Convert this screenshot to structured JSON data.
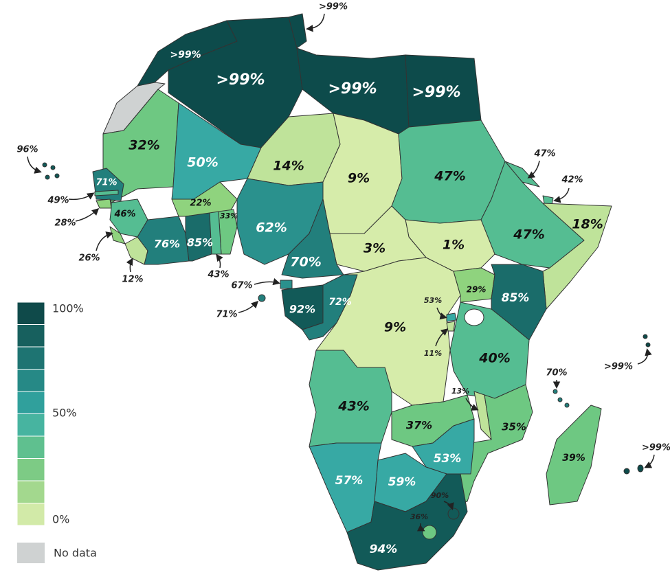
{
  "map": {
    "regions": [
      {
        "label": ">99%",
        "color": "#0d4b4b"
      },
      {
        "label": ">99%",
        "color": "#0d4b4b"
      },
      {
        "label": ">99%",
        "color": "#0d4b4b"
      },
      {
        "label": ">99%",
        "color": "#0d4b4b"
      },
      {
        "label": ">99%",
        "color": "#0d4b4b"
      },
      {
        "label": "32%",
        "color": "#6ec882"
      },
      {
        "label": "50%",
        "color": "#37a9a4"
      },
      {
        "label": "14%",
        "color": "#bfe39a"
      },
      {
        "label": "9%",
        "color": "#d6ecaa"
      },
      {
        "label": "47%",
        "color": "#55bd92"
      },
      {
        "label": "47%",
        "color": "#55bd92"
      },
      {
        "label": "42%",
        "color": "#55bd92"
      },
      {
        "label": "47%",
        "color": "#55bd92"
      },
      {
        "label": "18%",
        "color": "#bfe39a"
      },
      {
        "label": "1%",
        "color": "#d6ecaa"
      },
      {
        "label": "3%",
        "color": "#d6ecaa"
      },
      {
        "label": "62%",
        "color": "#2a918d"
      },
      {
        "label": "70%",
        "color": "#227f7c"
      },
      {
        "label": "71%",
        "color": "#227f7c"
      },
      {
        "label": "49%",
        "color": "#55bd92"
      },
      {
        "label": "28%",
        "color": "#8fd37e"
      },
      {
        "label": "46%",
        "color": "#55bd92"
      },
      {
        "label": "26%",
        "color": "#8fd37e"
      },
      {
        "label": "12%",
        "color": "#bfe39a"
      },
      {
        "label": "76%",
        "color": "#227f7c"
      },
      {
        "label": "22%",
        "color": "#8fd37e"
      },
      {
        "label": "85%",
        "color": "#1a6c6a"
      },
      {
        "label": "33%",
        "color": "#6ec882"
      },
      {
        "label": "43%",
        "color": "#55bd92"
      },
      {
        "label": "67%",
        "color": "#2a918d"
      },
      {
        "label": "71%",
        "color": "#227f7c"
      },
      {
        "label": "92%",
        "color": "#125a58"
      },
      {
        "label": "72%",
        "color": "#227f7c"
      },
      {
        "label": "9%",
        "color": "#d6ecaa"
      },
      {
        "label": "29%",
        "color": "#8fd37e"
      },
      {
        "label": "85%",
        "color": "#1a6c6a"
      },
      {
        "label": "53%",
        "color": "#37a9a4"
      },
      {
        "label": "11%",
        "color": "#bfe39a"
      },
      {
        "label": "40%",
        "color": "#55bd92"
      },
      {
        "label": "43%",
        "color": "#55bd92"
      },
      {
        "label": "37%",
        "color": "#6ec882"
      },
      {
        "label": "13%",
        "color": "#bfe39a"
      },
      {
        "label": "35%",
        "color": "#6ec882"
      },
      {
        "label": "53%",
        "color": "#37a9a4"
      },
      {
        "label": "57%",
        "color": "#37a9a4"
      },
      {
        "label": "59%",
        "color": "#37a9a4"
      },
      {
        "label": "94%",
        "color": "#125a58"
      },
      {
        "label": "90%",
        "color": "#125a58"
      },
      {
        "label": "36%",
        "color": "#6ec882"
      },
      {
        "label": "39%",
        "color": "#6ec882"
      },
      {
        "label": "96%",
        "color": "#125a58"
      },
      {
        "label": "70%",
        "color": "#227f7c"
      },
      {
        "label": ">99%",
        "color": "#0d4b4b"
      },
      {
        "label": ">99%",
        "color": "#0d4b4b"
      }
    ]
  },
  "legend": {
    "scale_colors": [
      "#0f4a4a",
      "#17605e",
      "#1e7472",
      "#268986",
      "#30a09c",
      "#47b4a0",
      "#5fc08f",
      "#7dcb85",
      "#a3d88e",
      "#d2eaa8"
    ],
    "labels": [
      "100%",
      "50%",
      "0%"
    ],
    "no_data": {
      "label": "No data",
      "color": "#cfd2d2"
    }
  }
}
